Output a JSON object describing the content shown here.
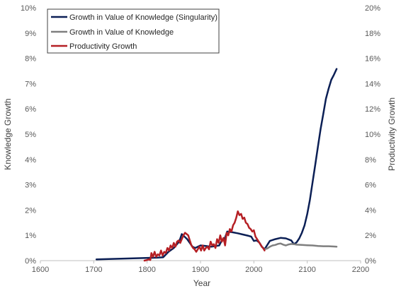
{
  "chart_data": {
    "type": "line",
    "xlabel": "Year",
    "ylabel_left": "Knowledge Growth",
    "ylabel_right": "Productivity Growth",
    "xlim": [
      1600,
      2200
    ],
    "x_ticks": [
      "1600",
      "1700",
      "1800",
      "1900",
      "2000",
      "2100",
      "2200"
    ],
    "ylim_left": [
      0,
      10
    ],
    "ylim_right": [
      0,
      20
    ],
    "y_ticks_left": [
      "0%",
      "1%",
      "2%",
      "3%",
      "4%",
      "5%",
      "6%",
      "7%",
      "8%",
      "9%",
      "10%"
    ],
    "y_ticks_right": [
      "0%",
      "2%",
      "4%",
      "6%",
      "8%",
      "10%",
      "12%",
      "14%",
      "16%",
      "18%",
      "20%"
    ],
    "grid": false,
    "legend_position": "top-left",
    "series": [
      {
        "name": "Growth in Value of Knowledge (Singularity)",
        "axis": "left",
        "color": "#0b1f55",
        "x": [
          1705,
          1820,
          1830,
          1840,
          1850,
          1860,
          1865,
          1870,
          1875,
          1880,
          1885,
          1890,
          1900,
          1910,
          1920,
          1935,
          1940,
          1945,
          1950,
          1960,
          1970,
          1980,
          1990,
          1995,
          2000,
          2005,
          2010,
          2015,
          2020,
          2030,
          2040,
          2050,
          2060,
          2070,
          2075,
          2080,
          2085,
          2090,
          2095,
          2100,
          2105,
          2110,
          2115,
          2120,
          2125,
          2130,
          2135,
          2140,
          2145,
          2150,
          2155
        ],
        "y": [
          0.05,
          0.12,
          0.13,
          0.35,
          0.5,
          0.75,
          1.05,
          0.95,
          0.85,
          0.7,
          0.55,
          0.5,
          0.6,
          0.58,
          0.55,
          0.6,
          0.8,
          0.85,
          1.15,
          1.12,
          1.08,
          1.03,
          0.98,
          0.95,
          0.78,
          0.8,
          0.72,
          0.55,
          0.45,
          0.78,
          0.85,
          0.9,
          0.88,
          0.8,
          0.65,
          0.72,
          0.88,
          1.1,
          1.4,
          1.85,
          2.4,
          3.1,
          3.8,
          4.5,
          5.2,
          5.8,
          6.4,
          6.8,
          7.15,
          7.35,
          7.58
        ]
      },
      {
        "name": "Growth in Value of Knowledge",
        "axis": "left",
        "color": "#7f7f7f",
        "x": [
          2020,
          2025,
          2030,
          2035,
          2040,
          2045,
          2050,
          2055,
          2060,
          2065,
          2070,
          2075,
          2080,
          2090,
          2100,
          2110,
          2120,
          2130,
          2140,
          2150,
          2155
        ],
        "y": [
          0.45,
          0.48,
          0.55,
          0.6,
          0.62,
          0.66,
          0.68,
          0.63,
          0.6,
          0.64,
          0.66,
          0.65,
          0.63,
          0.62,
          0.61,
          0.6,
          0.58,
          0.57,
          0.57,
          0.56,
          0.55
        ]
      },
      {
        "name": "Productivity Growth",
        "axis": "right",
        "color": "#b51f24",
        "x": [
          1795,
          1800,
          1803,
          1806,
          1808,
          1811,
          1814,
          1817,
          1820,
          1823,
          1826,
          1829,
          1832,
          1835,
          1838,
          1841,
          1844,
          1847,
          1850,
          1853,
          1856,
          1859,
          1862,
          1865,
          1868,
          1871,
          1874,
          1877,
          1880,
          1883,
          1886,
          1889,
          1892,
          1895,
          1898,
          1901,
          1904,
          1907,
          1910,
          1913,
          1916,
          1919,
          1922,
          1925,
          1928,
          1931,
          1934,
          1937,
          1940,
          1943,
          1946,
          1949,
          1952,
          1955,
          1958,
          1961,
          1964,
          1967,
          1970,
          1973,
          1976,
          1979,
          1982,
          1985,
          1988,
          1991,
          1994,
          1997,
          2000,
          2003,
          2006,
          2009,
          2012,
          2015,
          2018,
          2020
        ],
        "y": [
          0.0,
          0.05,
          0.1,
          0.05,
          0.6,
          0.3,
          0.7,
          0.3,
          0.5,
          0.4,
          0.8,
          0.4,
          0.7,
          0.6,
          1.0,
          0.8,
          1.2,
          1.0,
          1.4,
          1.1,
          1.5,
          1.6,
          1.4,
          1.7,
          2.0,
          2.2,
          2.1,
          2.0,
          1.6,
          1.2,
          1.0,
          0.9,
          0.7,
          0.9,
          1.1,
          0.8,
          1.2,
          0.8,
          1.0,
          1.1,
          0.9,
          1.5,
          1.2,
          1.3,
          1.0,
          1.7,
          1.4,
          2.0,
          1.5,
          1.8,
          1.2,
          2.2,
          2.0,
          2.5,
          2.3,
          2.8,
          3.0,
          3.4,
          3.9,
          3.6,
          3.7,
          3.3,
          3.4,
          3.0,
          2.9,
          2.6,
          2.5,
          2.3,
          2.4,
          1.9,
          1.7,
          1.5,
          1.3,
          1.1,
          0.95,
          0.8
        ]
      }
    ]
  }
}
